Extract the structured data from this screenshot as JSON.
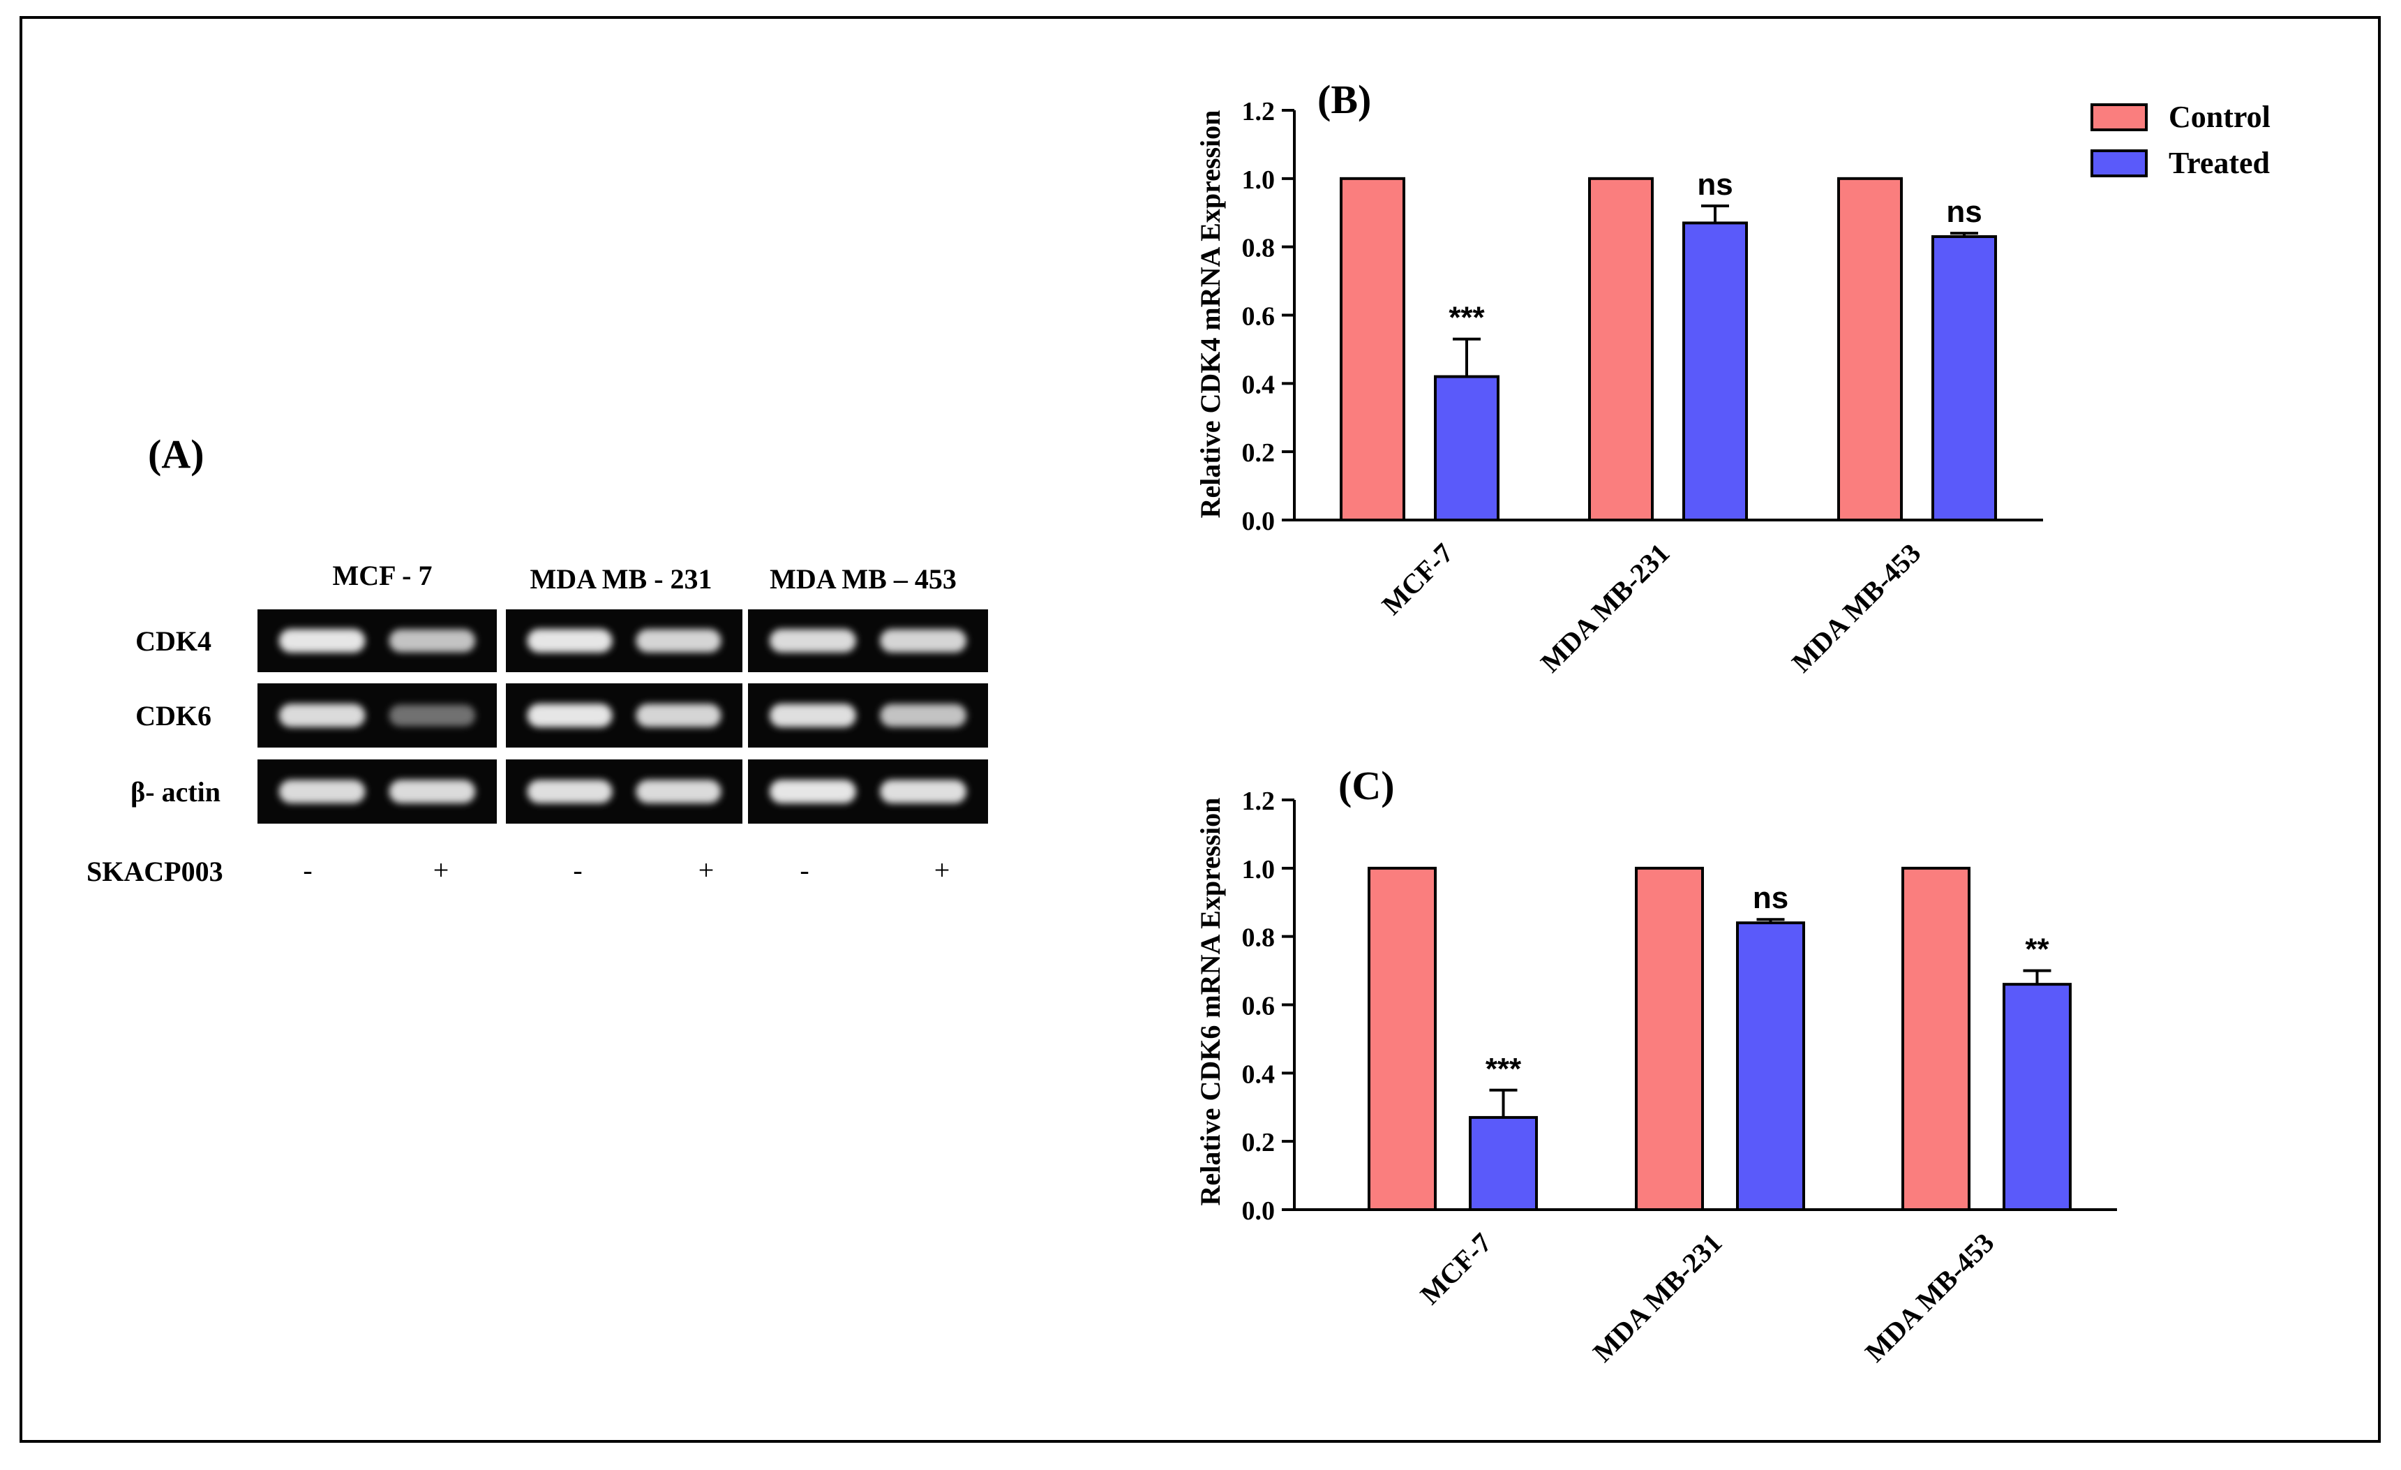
{
  "figure": {
    "panel_a": {
      "label": "(A)",
      "cell_lines": [
        "MCF - 7",
        "MDA MB - 231",
        "MDA MB – 453"
      ],
      "genes": [
        "CDK4",
        "CDK6",
        "β- actin"
      ],
      "treatment_label": "SKACP003",
      "treatment_marks": [
        "-",
        "+",
        "-",
        "+",
        "-",
        "+"
      ],
      "band_intensity": [
        [
          0.95,
          0.8,
          0.95,
          0.88,
          0.9,
          0.88
        ],
        [
          0.9,
          0.45,
          0.95,
          0.88,
          0.92,
          0.8
        ],
        [
          0.9,
          0.9,
          0.92,
          0.9,
          0.95,
          0.92
        ]
      ]
    },
    "legend": {
      "control": "Control",
      "treated": "Treated"
    },
    "colors": {
      "control": "#FA7E7E",
      "treated": "#5A5AFA",
      "gel_bg": "#070707",
      "band": "#F2F2F2",
      "frame": "#000000"
    }
  },
  "chart_data": [
    {
      "panel_label": "(B)",
      "type": "bar",
      "ylabel": "Relative CDK4 mRNA Expression",
      "xlabel": "",
      "ylim": [
        0,
        1.2
      ],
      "yticks": [
        "0.0",
        "0.2",
        "0.4",
        "0.6",
        "0.8",
        "1.0",
        "1.2"
      ],
      "categories": [
        "MCF-7",
        "MDA MB-231",
        "MDA MB-453"
      ],
      "series": [
        {
          "name": "Control",
          "values": [
            1.0,
            1.0,
            1.0
          ],
          "errors": [
            0,
            0,
            0
          ]
        },
        {
          "name": "Treated",
          "values": [
            0.42,
            0.87,
            0.83
          ],
          "errors": [
            0.11,
            0.05,
            0.01
          ]
        }
      ],
      "annotations": [
        "***",
        "ns",
        "ns"
      ],
      "legend_position": "top-right"
    },
    {
      "panel_label": "(C)",
      "type": "bar",
      "ylabel": "Relative CDK6 mRNA Expression",
      "xlabel": "",
      "ylim": [
        0,
        1.2
      ],
      "yticks": [
        "0.0",
        "0.2",
        "0.4",
        "0.6",
        "0.8",
        "1.0",
        "1.2"
      ],
      "categories": [
        "MCF-7",
        "MDA MB-231",
        "MDA MB-453"
      ],
      "series": [
        {
          "name": "Control",
          "values": [
            1.0,
            1.0,
            1.0
          ],
          "errors": [
            0,
            0,
            0
          ]
        },
        {
          "name": "Treated",
          "values": [
            0.27,
            0.84,
            0.66
          ],
          "errors": [
            0.08,
            0.01,
            0.04
          ]
        }
      ],
      "annotations": [
        "***",
        "ns",
        "**"
      ],
      "legend_position": "none"
    }
  ]
}
